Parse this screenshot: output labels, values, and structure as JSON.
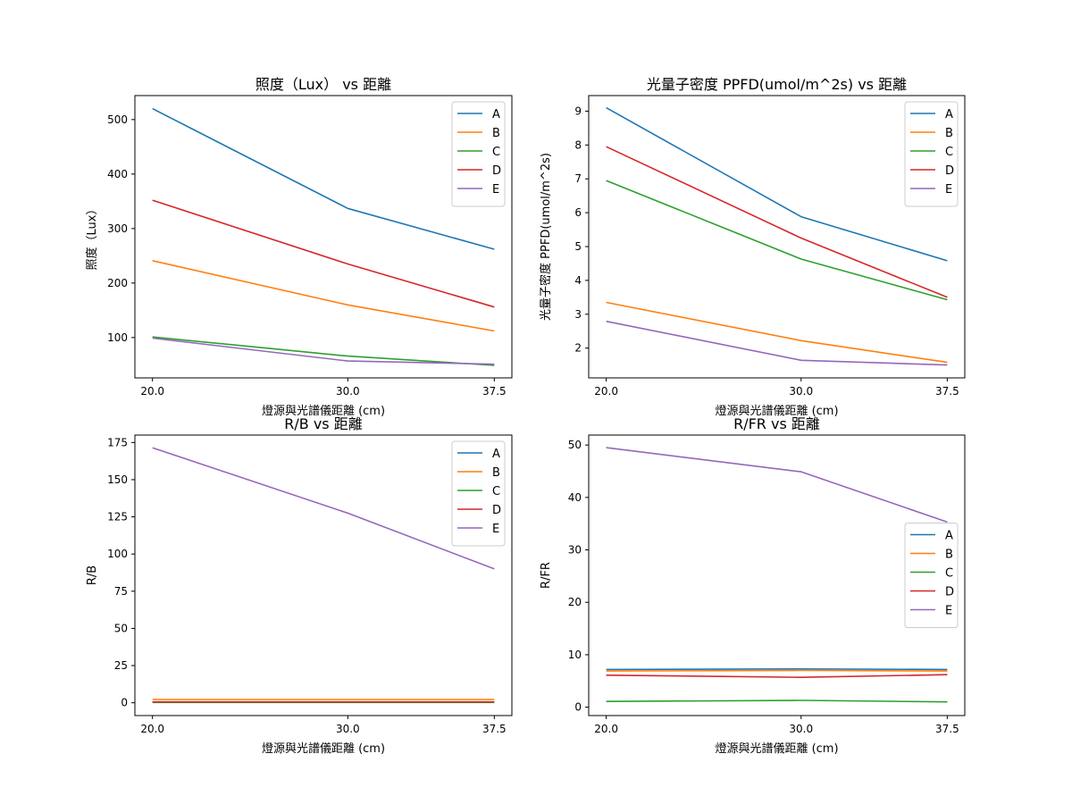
{
  "colors": {
    "A": "#1f77b4",
    "B": "#ff7f0e",
    "C": "#2ca02c",
    "D": "#d62728",
    "E": "#9467bd"
  },
  "chart_data": [
    {
      "type": "line",
      "title": "照度（Lux） vs 距離",
      "xlabel": "燈源與光譜儀距離 (cm)",
      "ylabel": "照度（Lux）",
      "x": [
        20.0,
        30.0,
        37.5
      ],
      "x_tick_labels": [
        "20.0",
        "30.0",
        "37.5"
      ],
      "xlim": [
        19.1,
        38.4
      ],
      "ylim": [
        26,
        544
      ],
      "y_ticks": [
        100,
        200,
        300,
        400,
        500
      ],
      "y_tick_labels": [
        "100",
        "200",
        "300",
        "400",
        "500"
      ],
      "legend_position": "top-right",
      "series": [
        {
          "name": "A",
          "values": [
            520,
            337,
            262
          ]
        },
        {
          "name": "B",
          "values": [
            241,
            160,
            112
          ]
        },
        {
          "name": "C",
          "values": [
            101,
            66,
            49
          ]
        },
        {
          "name": "D",
          "values": [
            352,
            235,
            156
          ]
        },
        {
          "name": "E",
          "values": [
            99,
            57,
            51
          ]
        }
      ]
    },
    {
      "type": "line",
      "title": "光量子密度 PPFD(umol/m^2s) vs 距離",
      "xlabel": "燈源與光譜儀距離 (cm)",
      "ylabel": "光量子密度 PPFD(umol/m^2s)",
      "x": [
        20.0,
        30.0,
        37.5
      ],
      "x_tick_labels": [
        "20.0",
        "30.0",
        "37.5"
      ],
      "xlim": [
        19.1,
        38.4
      ],
      "ylim": [
        1.12,
        9.46
      ],
      "y_ticks": [
        2,
        3,
        4,
        5,
        6,
        7,
        8,
        9
      ],
      "y_tick_labels": [
        "2",
        "3",
        "4",
        "5",
        "6",
        "7",
        "8",
        "9"
      ],
      "legend_position": "top-right",
      "series": [
        {
          "name": "A",
          "values": [
            9.1,
            5.88,
            4.58
          ]
        },
        {
          "name": "B",
          "values": [
            3.35,
            2.22,
            1.58
          ]
        },
        {
          "name": "C",
          "values": [
            6.95,
            4.63,
            3.43
          ]
        },
        {
          "name": "D",
          "values": [
            7.95,
            5.25,
            3.5
          ]
        },
        {
          "name": "E",
          "values": [
            2.79,
            1.64,
            1.5
          ]
        }
      ]
    },
    {
      "type": "line",
      "title": "R/B vs 距離",
      "xlabel": "燈源與光譜儀距離 (cm)",
      "ylabel": "R/B",
      "x": [
        20.0,
        30.0,
        37.5
      ],
      "x_tick_labels": [
        "20.0",
        "30.0",
        "37.5"
      ],
      "xlim": [
        19.1,
        38.4
      ],
      "ylim": [
        -8.6,
        180
      ],
      "y_ticks": [
        0,
        25,
        50,
        75,
        100,
        125,
        150,
        175
      ],
      "y_tick_labels": [
        "0",
        "25",
        "50",
        "75",
        "100",
        "125",
        "150",
        "175"
      ],
      "legend_position": "top-right",
      "series": [
        {
          "name": "A",
          "values": [
            0.5,
            0.5,
            0.5
          ]
        },
        {
          "name": "B",
          "values": [
            2.2,
            2.2,
            2.2
          ]
        },
        {
          "name": "C",
          "values": [
            0.2,
            0.2,
            0.2
          ]
        },
        {
          "name": "D",
          "values": [
            0.6,
            0.6,
            0.6
          ]
        },
        {
          "name": "E",
          "values": [
            171.5,
            127.5,
            90
          ]
        }
      ]
    },
    {
      "type": "line",
      "title": "R/FR vs 距離",
      "xlabel": "燈源與光譜儀距離 (cm)",
      "ylabel": "R/FR",
      "x": [
        20.0,
        30.0,
        37.5
      ],
      "x_tick_labels": [
        "20.0",
        "30.0",
        "37.5"
      ],
      "xlim": [
        19.1,
        38.4
      ],
      "ylim": [
        -1.6,
        51.9
      ],
      "y_ticks": [
        0,
        10,
        20,
        30,
        40,
        50
      ],
      "y_tick_labels": [
        "0",
        "10",
        "20",
        "30",
        "40",
        "50"
      ],
      "legend_position": "center-right",
      "series": [
        {
          "name": "A",
          "values": [
            7.2,
            7.3,
            7.2
          ]
        },
        {
          "name": "B",
          "values": [
            6.9,
            7.0,
            6.9
          ]
        },
        {
          "name": "C",
          "values": [
            1.1,
            1.3,
            1.0
          ]
        },
        {
          "name": "D",
          "values": [
            6.1,
            5.7,
            6.2
          ]
        },
        {
          "name": "E",
          "values": [
            49.5,
            44.9,
            35.3
          ]
        }
      ]
    }
  ]
}
